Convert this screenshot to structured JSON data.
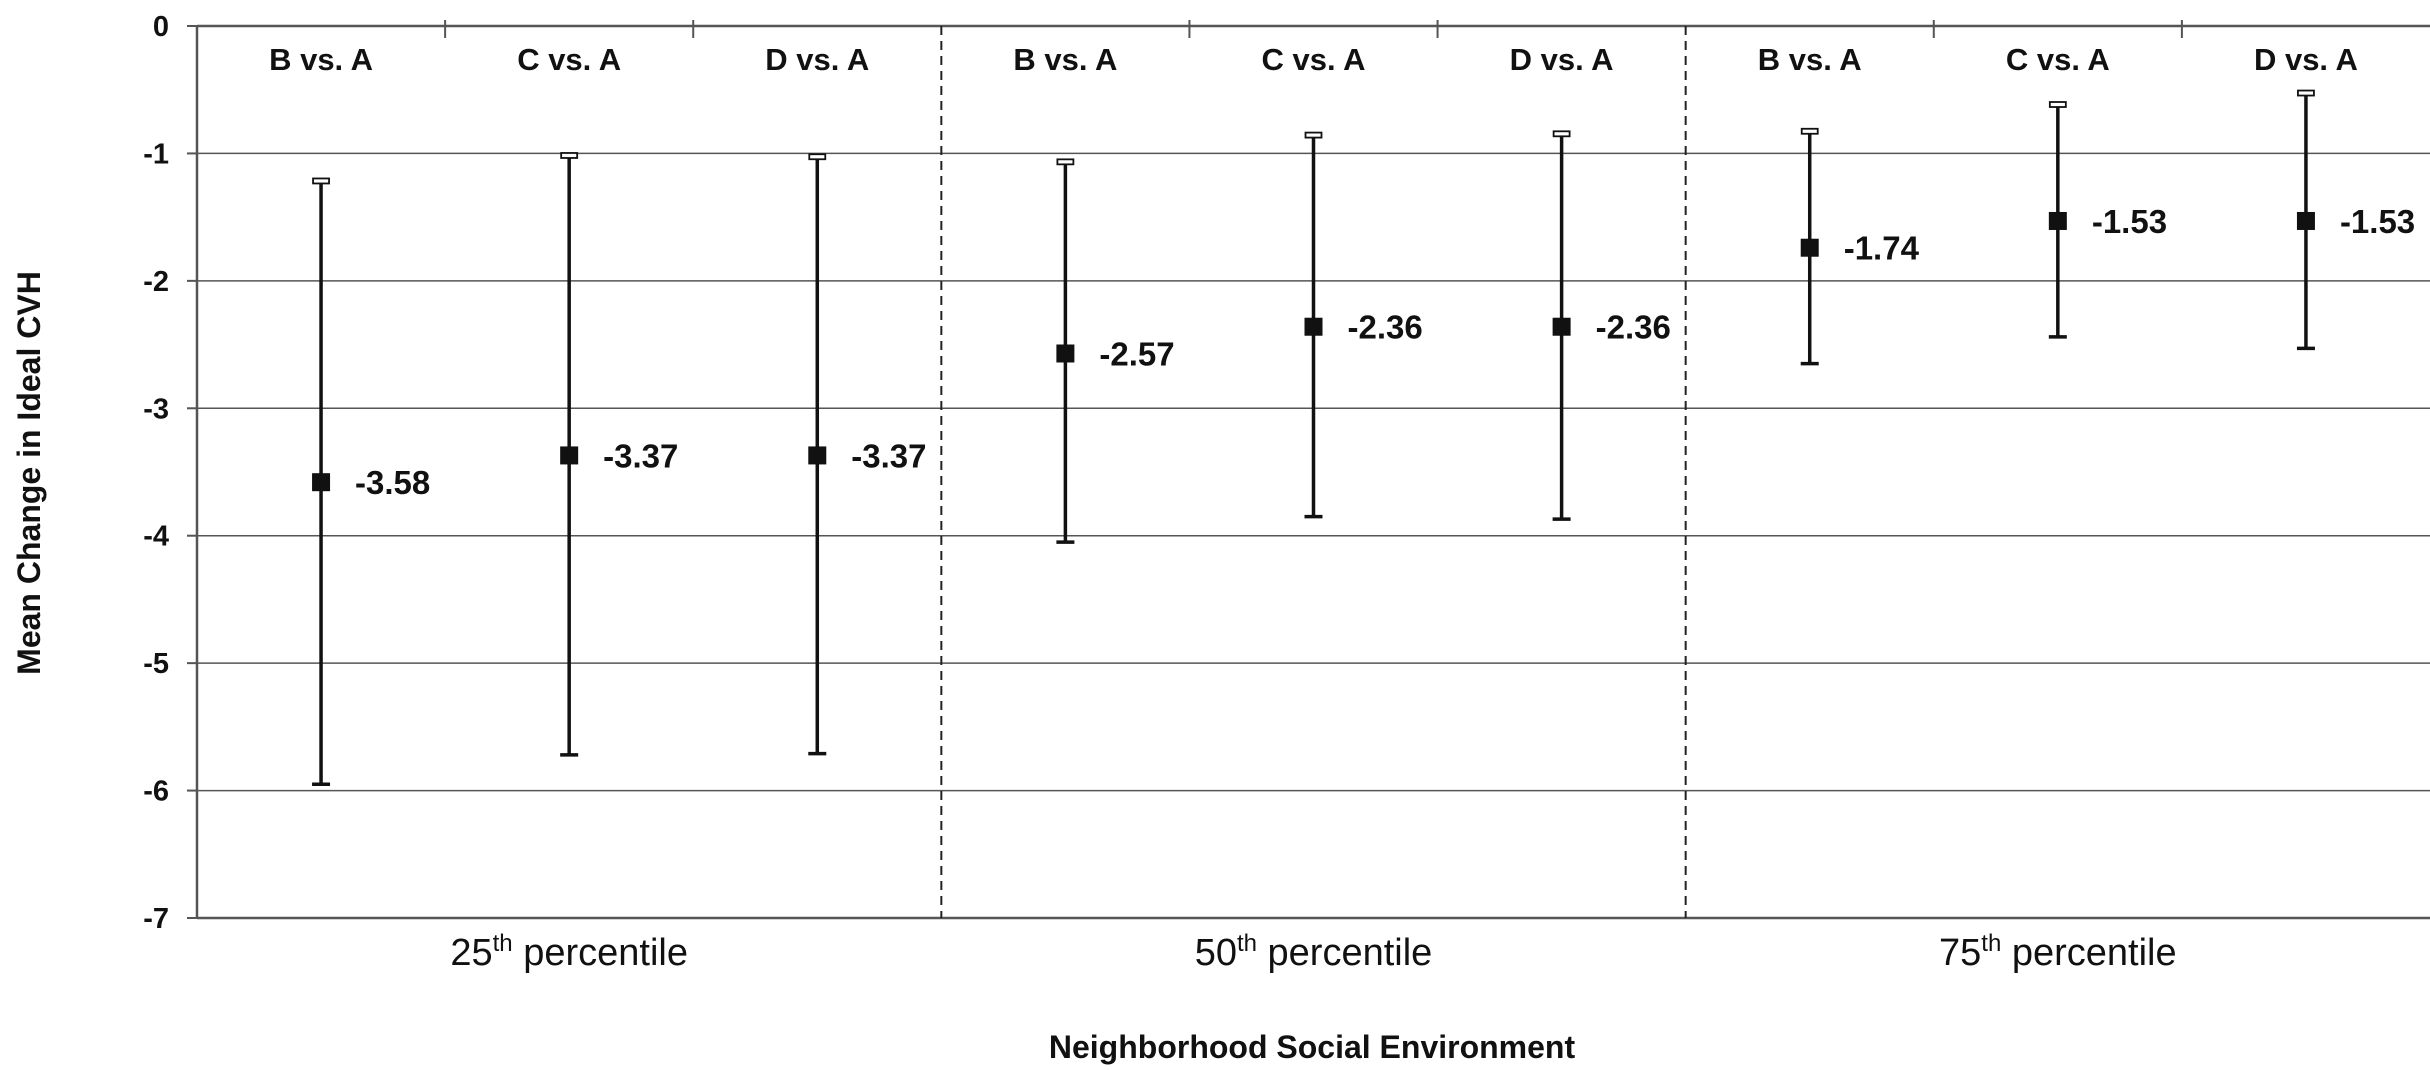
{
  "chart_data": {
    "type": "scatter",
    "subtype": "point-with-error-bars",
    "xlabel": "Neighborhood Social Environment",
    "ylabel": "Mean Change in Ideal CVH",
    "ylim": [
      -7,
      0
    ],
    "yticks": [
      "0",
      "-1",
      "-2",
      "-3",
      "-4",
      "-5",
      "-6",
      "-7"
    ],
    "grid": true,
    "groups": [
      {
        "label_num": "25",
        "label_sup": "th",
        "label_rest": " percentile",
        "points": [
          {
            "category": "B vs. A",
            "estimate": -3.58,
            "label": "-3.58",
            "lower": -5.95,
            "upper": -1.22
          },
          {
            "category": "C vs. A",
            "estimate": -3.37,
            "label": "-3.37",
            "lower": -5.72,
            "upper": -1.02
          },
          {
            "category": "D vs. A",
            "estimate": -3.37,
            "label": "-3.37",
            "lower": -5.71,
            "upper": -1.03
          }
        ]
      },
      {
        "label_num": "50",
        "label_sup": "th",
        "label_rest": " percentile",
        "points": [
          {
            "category": "B vs. A",
            "estimate": -2.57,
            "label": "-2.57",
            "lower": -4.05,
            "upper": -1.07
          },
          {
            "category": "C vs. A",
            "estimate": -2.36,
            "label": "-2.36",
            "lower": -3.85,
            "upper": -0.86
          },
          {
            "category": "D vs. A",
            "estimate": -2.36,
            "label": "-2.36",
            "lower": -3.87,
            "upper": -0.85
          }
        ]
      },
      {
        "label_num": "75",
        "label_sup": "th",
        "label_rest": " percentile",
        "points": [
          {
            "category": "B vs. A",
            "estimate": -1.74,
            "label": "-1.74",
            "lower": -2.65,
            "upper": -0.83
          },
          {
            "category": "C vs. A",
            "estimate": -1.53,
            "label": "-1.53",
            "lower": -2.44,
            "upper": -0.62
          },
          {
            "category": "D vs. A",
            "estimate": -1.53,
            "label": "-1.53",
            "lower": -2.53,
            "upper": -0.53
          }
        ]
      }
    ]
  }
}
